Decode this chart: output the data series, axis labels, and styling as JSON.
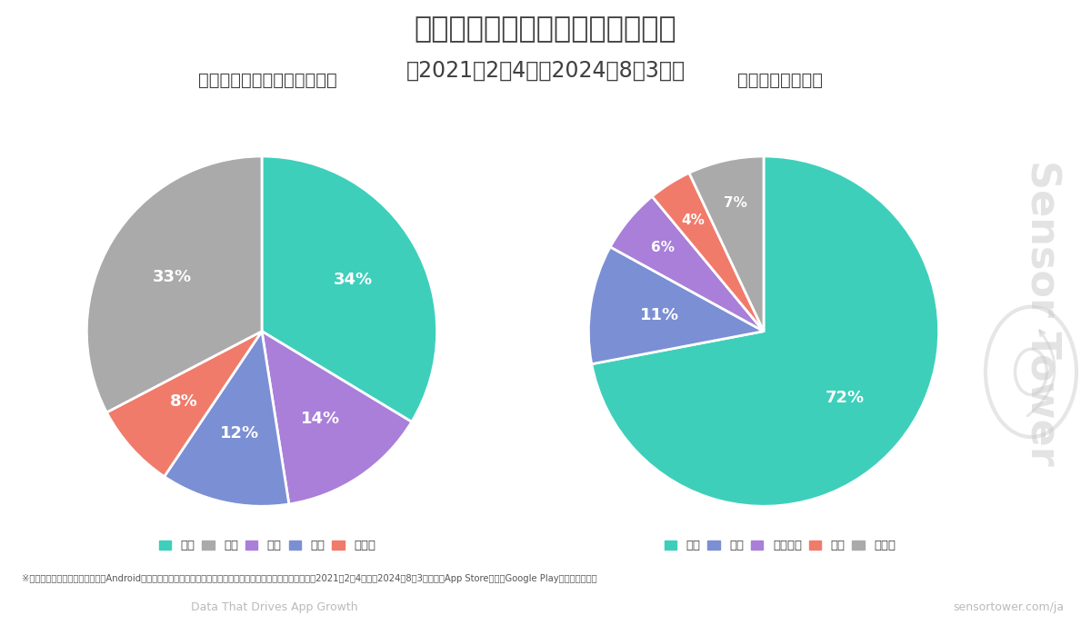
{
  "title_line1": "ブルーアーカイブの市場別シェア",
  "title_line2": "（2021年2月4日〜2024年8月3日）",
  "left_title": "市場別ダウンロード数シェア",
  "right_title": "市場別収益シェア",
  "left_values": [
    34,
    14,
    12,
    8,
    33
  ],
  "left_labels": [
    "34%",
    "14%",
    "12%",
    "8%",
    "33%"
  ],
  "left_colors": [
    "#3ECFBB",
    "#A97FD9",
    "#7B8FD4",
    "#F07B6A",
    "#AAAAAA"
  ],
  "left_legend_labels": [
    "日本",
    "中国",
    "韓国",
    "タイ",
    "その他"
  ],
  "left_legend_colors": [
    "#3ECFBB",
    "#AAAAAA",
    "#A97FD9",
    "#7B8FD4",
    "#F07B6A"
  ],
  "right_values": [
    72,
    11,
    6,
    4,
    7
  ],
  "right_labels": [
    "72%",
    "11%",
    "6%",
    "4%",
    "7%"
  ],
  "right_colors": [
    "#3ECFBB",
    "#7B8FD4",
    "#A97FD9",
    "#F07B6A",
    "#AAAAAA"
  ],
  "right_legend_labels": [
    "日本",
    "韓国",
    "アメリカ",
    "台湾",
    "その他"
  ],
  "right_legend_colors": [
    "#3ECFBB",
    "#7B8FD4",
    "#A97FD9",
    "#F07B6A",
    "#AAAAAA"
  ],
  "bg_color": "#FFFFFF",
  "text_color": "#404040",
  "footer_bg": "#2D2D3A",
  "footer_text": "Data That Drives App Growth",
  "footer_url": "sensortower.com/ja",
  "note_text": "※データにはサードパーティーのAndroidマーケットデータは含まれておりません。ダウンロード数・収益予測は2021年2月4日から2024年8月3日までのApp StoreおよびGoogle Playからのものです",
  "watermark_text": "Sensor Tower",
  "sensortower_brand": "SensorTower"
}
